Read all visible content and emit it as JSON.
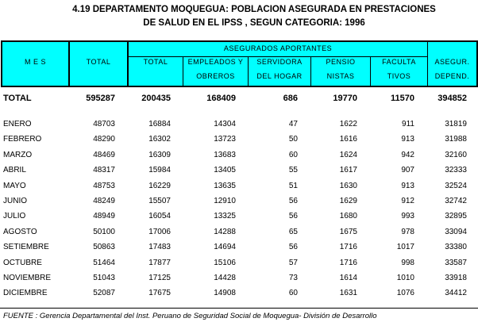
{
  "title": {
    "line1": "4.19  DEPARTAMENTO MOQUEGUA: POBLACION ASEGURADA EN PRESTACIONES",
    "line2": "DE SALUD EN EL IPSS , SEGUN CATEGORIA: 1996"
  },
  "header": {
    "mes": "M  E  S",
    "total": "TOTAL",
    "group": "ASEGURADOS APORTANTES",
    "ap_total": "TOTAL",
    "emp1": "EMPLEADOS Y",
    "emp2": "OBREROS",
    "serv1": "SERVIDORA",
    "serv2": "DEL HOGAR",
    "pen1": "PENSIO",
    "pen2": "NISTAS",
    "fac1": "FACULTA",
    "fac2": "TIVOS",
    "dep1": "ASEGUR.",
    "dep2": "DEPEND."
  },
  "total_row": [
    "TOTAL",
    "595287",
    "200435",
    "168409",
    "686",
    "19770",
    "11570",
    "394852"
  ],
  "rows": [
    [
      "ENERO",
      "48703",
      "16884",
      "14304",
      "47",
      "1622",
      "911",
      "31819"
    ],
    [
      "FEBRERO",
      "48290",
      "16302",
      "13723",
      "50",
      "1616",
      "913",
      "31988"
    ],
    [
      "MARZO",
      "48469",
      "16309",
      "13683",
      "60",
      "1624",
      "942",
      "32160"
    ],
    [
      "ABRIL",
      "48317",
      "15984",
      "13405",
      "55",
      "1617",
      "907",
      "32333"
    ],
    [
      "MAYO",
      "48753",
      "16229",
      "13635",
      "51",
      "1630",
      "913",
      "32524"
    ],
    [
      "JUNIO",
      "48249",
      "15507",
      "12910",
      "56",
      "1629",
      "912",
      "32742"
    ],
    [
      "JULIO",
      "48949",
      "16054",
      "13325",
      "56",
      "1680",
      "993",
      "32895"
    ],
    [
      "AGOSTO",
      "50100",
      "17006",
      "14288",
      "65",
      "1675",
      "978",
      "33094"
    ],
    [
      "SETIEMBRE",
      "50863",
      "17483",
      "14694",
      "56",
      "1716",
      "1017",
      "33380"
    ],
    [
      "OCTUBRE",
      "51464",
      "17877",
      "15106",
      "57",
      "1716",
      "998",
      "33587"
    ],
    [
      "NOVIEMBRE",
      "51043",
      "17125",
      "14428",
      "73",
      "1614",
      "1010",
      "33918"
    ],
    [
      "DICIEMBRE",
      "52087",
      "17675",
      "14908",
      "60",
      "1631",
      "1076",
      "34412"
    ]
  ],
  "footnote": "FUENTE : Gerencia Departamental del Inst. Peruano de Seguridad Social de Moquegua- División de Desarrollo",
  "colors": {
    "header_bg": "#00ffff"
  }
}
